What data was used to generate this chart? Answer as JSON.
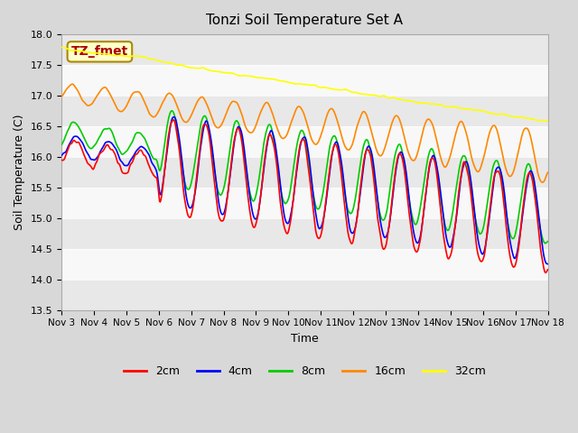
{
  "title": "Tonzi Soil Temperature Set A",
  "xlabel": "Time",
  "ylabel": "Soil Temperature (C)",
  "ylim": [
    13.5,
    18.0
  ],
  "yticks": [
    13.5,
    14.0,
    14.5,
    15.0,
    15.5,
    16.0,
    16.5,
    17.0,
    17.5,
    18.0
  ],
  "xtick_labels": [
    "Nov 3",
    "Nov 4",
    "Nov 5",
    "Nov 6",
    "Nov 7",
    "Nov 8",
    "Nov 9",
    "Nov 10",
    "Nov 11",
    "Nov 12",
    "Nov 13",
    "Nov 14",
    "Nov 15",
    "Nov 16",
    "Nov 17",
    "Nov 18"
  ],
  "colors": {
    "2cm": "#ff0000",
    "4cm": "#0000ff",
    "8cm": "#00cc00",
    "16cm": "#ff8800",
    "32cm": "#ffff00"
  },
  "bg_color": "#e8e8e8",
  "plot_bg": "#f0f0f0",
  "annotation_text": "TZ_fmet",
  "annotation_bg": "#ffffcc",
  "annotation_fg": "#aa0000",
  "legend_labels": [
    "2cm",
    "4cm",
    "8cm",
    "16cm",
    "32cm"
  ]
}
